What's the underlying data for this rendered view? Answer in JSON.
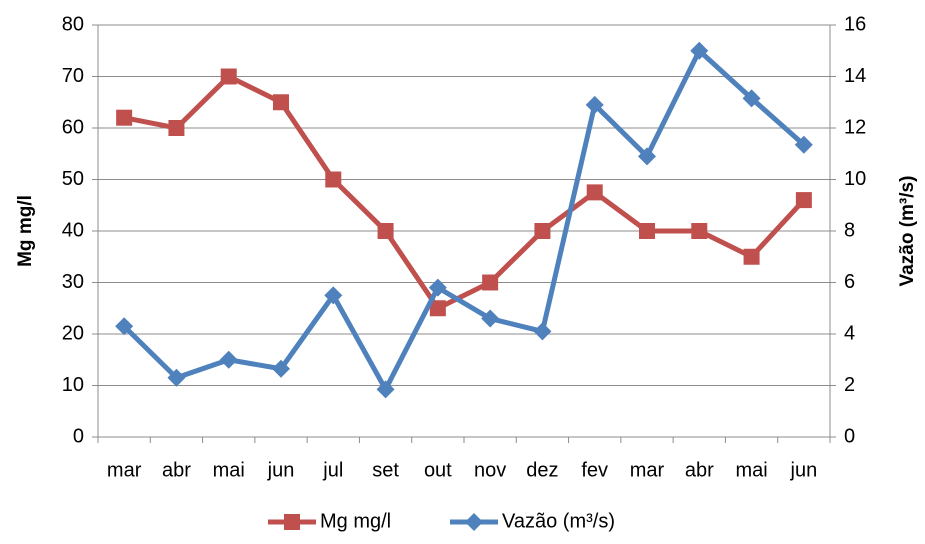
{
  "chart_data": {
    "type": "line",
    "categories": [
      "mar",
      "abr",
      "mai",
      "jun",
      "jul",
      "set",
      "out",
      "nov",
      "dez",
      "fev",
      "mar",
      "abr",
      "mai",
      "jun"
    ],
    "ylabel": "Mg mg/l",
    "y2label": "Vazão (m³/s)",
    "ylim": [
      0,
      80
    ],
    "yticks": [
      0,
      10,
      20,
      30,
      40,
      50,
      60,
      70,
      80
    ],
    "y2lim": [
      0,
      16
    ],
    "y2ticks": [
      0,
      2,
      4,
      6,
      8,
      10,
      12,
      14,
      16
    ],
    "grid": true,
    "legend": "bottom",
    "series": [
      {
        "name": "Mg mg/l",
        "color": "#c0504d",
        "marker": "square",
        "values": [
          62,
          60,
          70,
          65,
          50,
          40,
          25,
          30,
          40,
          47.5,
          40,
          40,
          35,
          46
        ]
      },
      {
        "name": "Vazão (m³/s)",
        "color": "#4f81bd",
        "marker": "diamond",
        "axis": "y2",
        "values": [
          4.3,
          2.3,
          3.0,
          2.65,
          5.5,
          1.85,
          5.8,
          4.6,
          4.1,
          12.9,
          10.9,
          15.0,
          13.15,
          11.35
        ]
      }
    ]
  }
}
